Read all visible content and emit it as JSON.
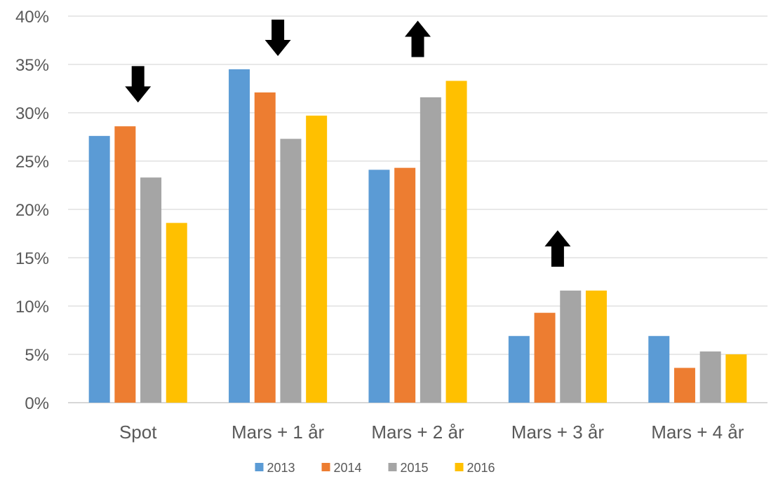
{
  "chart_data": {
    "type": "bar",
    "categories": [
      "Spot",
      "Mars + 1 år",
      "Mars + 2 år",
      "Mars + 3 år",
      "Mars + 4 år"
    ],
    "series": [
      {
        "name": "2013",
        "color": "#5B9BD5",
        "values": [
          27.6,
          34.5,
          24.1,
          6.9,
          6.9
        ]
      },
      {
        "name": "2014",
        "color": "#ED7D31",
        "values": [
          28.6,
          32.1,
          24.3,
          9.3,
          3.6
        ]
      },
      {
        "name": "2015",
        "color": "#A5A5A5",
        "values": [
          23.3,
          27.3,
          31.6,
          11.6,
          5.3
        ]
      },
      {
        "name": "2016",
        "color": "#FFC000",
        "values": [
          18.6,
          29.7,
          33.3,
          11.6,
          5.0
        ]
      }
    ],
    "ylim": [
      0,
      40
    ],
    "yticks": [
      "0%",
      "5%",
      "10%",
      "15%",
      "20%",
      "25%",
      "30%",
      "35%",
      "40%"
    ],
    "grid": true,
    "legend_position": "bottom",
    "annotations": [
      {
        "category": "Spot",
        "direction": "down"
      },
      {
        "category": "Mars + 1 år",
        "direction": "down"
      },
      {
        "category": "Mars + 2 år",
        "direction": "up"
      },
      {
        "category": "Mars + 3 år",
        "direction": "up"
      }
    ]
  }
}
